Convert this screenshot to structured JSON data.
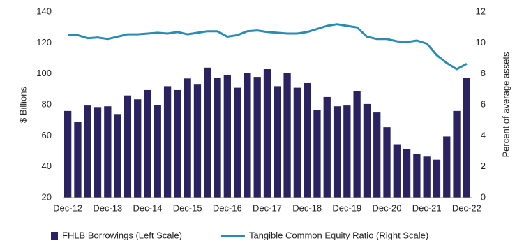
{
  "chart_data": {
    "type": "bar_line",
    "categories": [
      "Dec-12",
      null,
      null,
      null,
      "Dec-13",
      null,
      null,
      null,
      "Dec-14",
      null,
      null,
      null,
      "Dec-15",
      null,
      null,
      null,
      "Dec-16",
      null,
      null,
      null,
      "Dec-17",
      null,
      null,
      null,
      "Dec-18",
      null,
      null,
      null,
      "Dec-19",
      null,
      null,
      null,
      "Dec-20",
      null,
      null,
      null,
      "Dec-21",
      null,
      null,
      null,
      "Dec-22"
    ],
    "series": [
      {
        "name": "FHLB Borrowings (Left Scale)",
        "type": "bar",
        "color": "#2b2361",
        "values": [
          76,
          69,
          79.5,
          78.5,
          79,
          74,
          86,
          83.5,
          89.5,
          80,
          92,
          89.5,
          97,
          93,
          104,
          97.5,
          99,
          91,
          100.5,
          98,
          103,
          92,
          100.5,
          91,
          94,
          76.5,
          85,
          79,
          79.5,
          89,
          80.5,
          75,
          65.5,
          54.5,
          51.5,
          48,
          46.5,
          44.5,
          59.5,
          76,
          97.5
        ]
      },
      {
        "name": "Tangible Common Equity Ratio (Right Scale)",
        "type": "line",
        "axis": "y2",
        "color": "#2a8cb3",
        "values": [
          10.5,
          10.5,
          10.3,
          10.35,
          10.25,
          10.4,
          10.55,
          10.55,
          10.6,
          10.65,
          10.6,
          10.7,
          10.55,
          10.65,
          10.75,
          10.75,
          10.4,
          10.5,
          10.75,
          10.8,
          10.7,
          10.65,
          10.6,
          10.6,
          10.7,
          10.9,
          11.1,
          11.2,
          11.1,
          11.0,
          10.4,
          10.25,
          10.25,
          10.1,
          10.05,
          10.15,
          9.95,
          9.2,
          8.7,
          8.3,
          8.65
        ]
      }
    ],
    "ylabel": "$ Billions",
    "y2label": "Percent of average assets",
    "ylim": [
      20,
      140
    ],
    "yticks": [
      20,
      40,
      60,
      80,
      100,
      120,
      140
    ],
    "y2lim": [
      0,
      12
    ],
    "y2ticks": [
      0,
      2,
      4,
      6,
      8,
      10,
      12
    ],
    "grid": false,
    "legend": "bottom"
  }
}
